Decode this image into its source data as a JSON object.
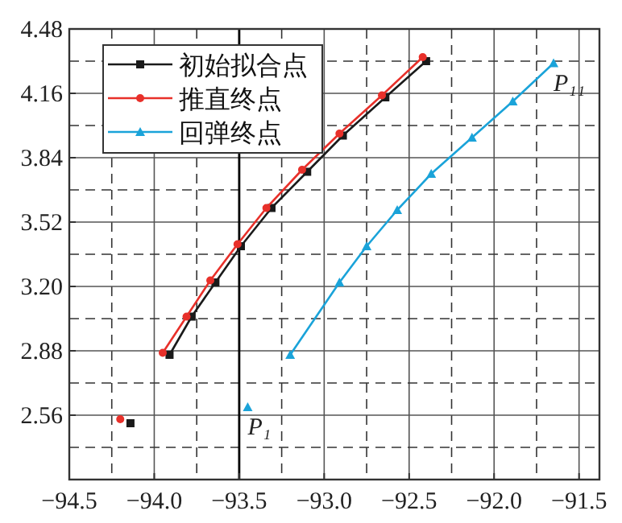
{
  "chart_data": {
    "type": "line",
    "xlim": [
      -94.5,
      -91.38
    ],
    "ylim": [
      2.24,
      4.48
    ],
    "xticks": [
      {
        "value": -94.5,
        "label": "−94.5"
      },
      {
        "value": -94.0,
        "label": "−94.0"
      },
      {
        "value": -93.5,
        "label": "−93.5"
      },
      {
        "value": -93.0,
        "label": "−93.0"
      },
      {
        "value": -92.5,
        "label": "−92.5"
      },
      {
        "value": -92.0,
        "label": "−92.0"
      },
      {
        "value": -91.5,
        "label": "−91.5"
      }
    ],
    "yticks": [
      {
        "value": 2.56,
        "label": "2.56"
      },
      {
        "value": 2.88,
        "label": "2.88"
      },
      {
        "value": 3.2,
        "label": "3.20"
      },
      {
        "value": 3.52,
        "label": "3.52"
      },
      {
        "value": 3.84,
        "label": "3.84"
      },
      {
        "value": 4.16,
        "label": "4.16"
      },
      {
        "value": 4.48,
        "label": "4.48"
      }
    ],
    "grid": true,
    "legend": "top left",
    "line_style": "solid",
    "series": [
      {
        "name": "初始拟合点",
        "color": "#1a1a1a",
        "marker": "square",
        "x": [
          -94.14,
          null,
          -93.91,
          -93.78,
          -93.64,
          -93.49,
          -93.31,
          -93.1,
          -92.89,
          -92.64,
          -92.4
        ],
        "values": [
          2.52,
          null,
          2.86,
          3.05,
          3.22,
          3.4,
          3.59,
          3.77,
          3.95,
          4.14,
          4.32
        ]
      },
      {
        "name": "推直终点",
        "color": "#e8302a",
        "marker": "circle",
        "x": [
          -94.2,
          null,
          -93.95,
          -93.81,
          -93.67,
          -93.51,
          -93.34,
          -93.13,
          -92.91,
          -92.66,
          -92.42
        ],
        "values": [
          2.54,
          null,
          2.87,
          3.05,
          3.23,
          3.41,
          3.59,
          3.78,
          3.96,
          4.15,
          4.34
        ]
      },
      {
        "name": "回弹终点",
        "color": "#1aa3d9",
        "marker": "triangle",
        "x": [
          -93.45,
          null,
          -93.2,
          -92.91,
          -92.75,
          -92.57,
          -92.37,
          -92.13,
          -91.89,
          -91.65
        ],
        "values": [
          2.6,
          null,
          2.86,
          3.22,
          3.4,
          3.58,
          3.76,
          3.94,
          4.12,
          4.31
        ]
      }
    ],
    "ref_lines": [
      {
        "axis": "x",
        "value": -93.5,
        "color": "#000000"
      }
    ],
    "annotations": [
      {
        "text": "P₁",
        "x": -93.45,
        "y": 2.6
      },
      {
        "text": "P₁₁",
        "x": -91.65,
        "y": 4.31
      }
    ]
  }
}
